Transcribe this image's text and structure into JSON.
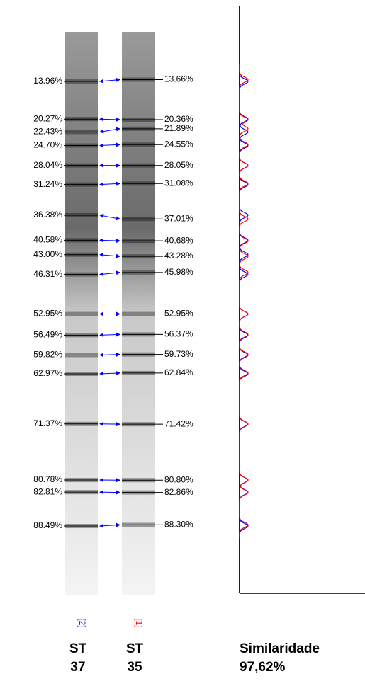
{
  "lanes": [
    {
      "label": "[2]",
      "color": "#0000ff",
      "strain": [
        "ST",
        "37"
      ],
      "bands": [
        {
          "value": 13.96,
          "label": "13.96%"
        },
        {
          "value": 20.27,
          "label": "20.27%"
        },
        {
          "value": 22.43,
          "label": "22.43%"
        },
        {
          "value": 24.7,
          "label": "24.70%"
        },
        {
          "value": 28.04,
          "label": "28.04%"
        },
        {
          "value": 31.24,
          "label": "31.24%"
        },
        {
          "value": 36.38,
          "label": "36.38%"
        },
        {
          "value": 40.58,
          "label": "40.58%"
        },
        {
          "value": 43.0,
          "label": "43.00%"
        },
        {
          "value": 46.31,
          "label": "46.31%"
        },
        {
          "value": 52.95,
          "label": "52.95%"
        },
        {
          "value": 56.49,
          "label": "56.49%"
        },
        {
          "value": 59.82,
          "label": "59.82%"
        },
        {
          "value": 62.97,
          "label": "62.97%"
        },
        {
          "value": 71.37,
          "label": "71.37%"
        },
        {
          "value": 80.78,
          "label": "80.78%"
        },
        {
          "value": 82.81,
          "label": "82.81%"
        },
        {
          "value": 88.49,
          "label": "88.49%"
        }
      ]
    },
    {
      "label": "[1]",
      "color": "#ff0000",
      "strain": [
        "ST",
        "35"
      ],
      "bands": [
        {
          "value": 13.66,
          "label": "13.66%"
        },
        {
          "value": 20.36,
          "label": "20.36%"
        },
        {
          "value": 21.89,
          "label": "21.89%"
        },
        {
          "value": 24.55,
          "label": "24.55%"
        },
        {
          "value": 28.05,
          "label": "28.05%"
        },
        {
          "value": 31.08,
          "label": "31.08%"
        },
        {
          "value": 37.01,
          "label": "37.01%"
        },
        {
          "value": 40.68,
          "label": "40.68%"
        },
        {
          "value": 43.28,
          "label": "43.28%"
        },
        {
          "value": 45.98,
          "label": "45.98%"
        },
        {
          "value": 52.95,
          "label": "52.95%"
        },
        {
          "value": 56.37,
          "label": "56.37%"
        },
        {
          "value": 59.73,
          "label": "59.73%"
        },
        {
          "value": 62.84,
          "label": "62.84%"
        },
        {
          "value": 71.42,
          "label": "71.42%"
        },
        {
          "value": 80.8,
          "label": "80.80%"
        },
        {
          "value": 82.86,
          "label": "82.86%"
        },
        {
          "value": 88.3,
          "label": "88.30%"
        }
      ]
    }
  ],
  "similarity": {
    "title": "Similaridade",
    "value": "97,62%"
  }
}
